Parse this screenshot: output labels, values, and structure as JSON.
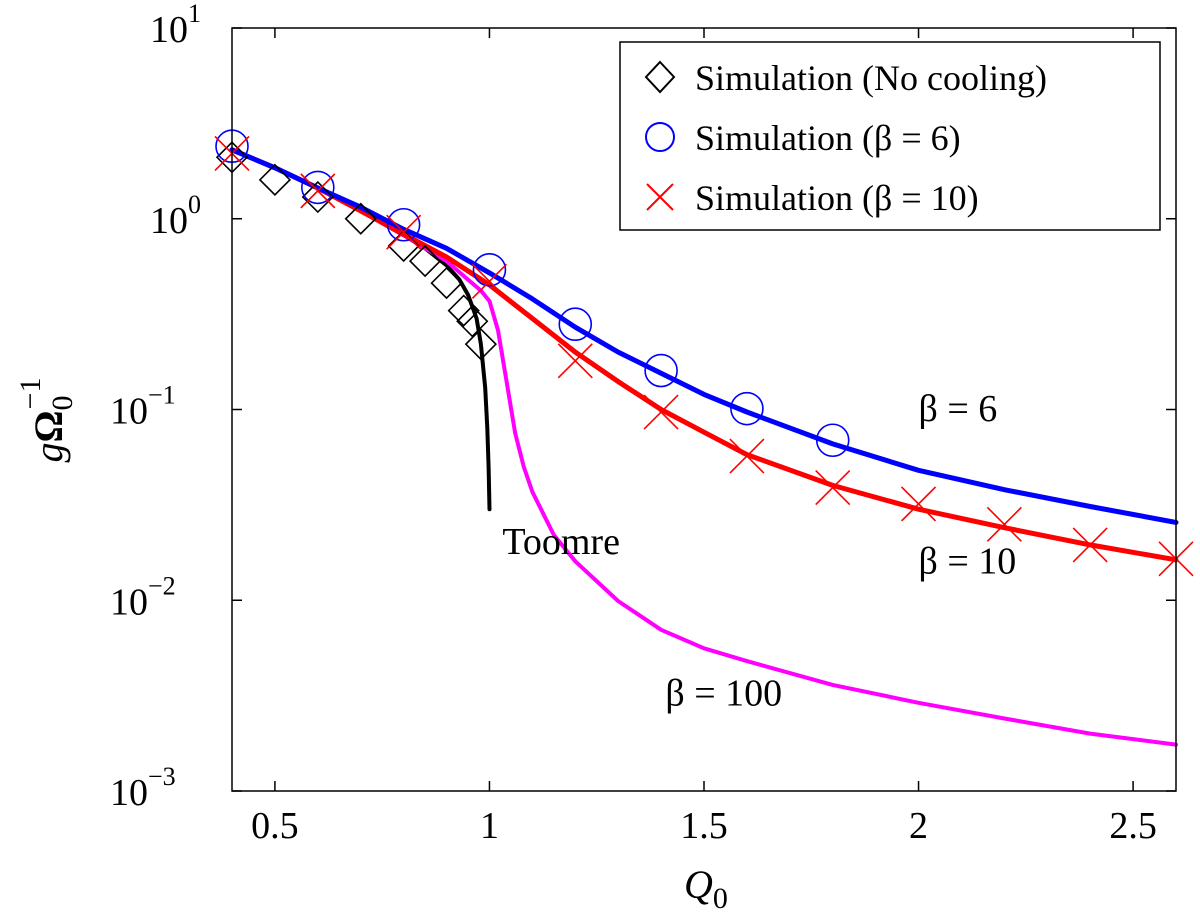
{
  "chart_data": {
    "type": "line",
    "title": "",
    "xlabel": "Q_0",
    "ylabel": "gΩ_0^-1",
    "xlim": [
      0.4,
      2.6
    ],
    "ylim": [
      0.001,
      10
    ],
    "yscale": "log",
    "grid": false,
    "legend_position": "top-right",
    "x_ticks": [
      0.5,
      1,
      1.5,
      2,
      2.5
    ],
    "x_tick_labels": [
      "0.5",
      "1",
      "1.5",
      "2",
      "2.5"
    ],
    "y_ticks": [
      {
        "value": 10,
        "base": "10",
        "exp": "1"
      },
      {
        "value": 1,
        "base": "10",
        "exp": "0"
      },
      {
        "value": 0.1,
        "base": "10",
        "exp": "−1"
      },
      {
        "value": 0.01,
        "base": "10",
        "exp": "−2"
      },
      {
        "value": 0.001,
        "base": "10",
        "exp": "−3"
      }
    ],
    "axis_titles": {
      "x": {
        "main": "Q",
        "sub": "0"
      },
      "y": {
        "g": "g",
        "omega": "Ω",
        "sub": "0",
        "sup": "−1"
      }
    },
    "legend": [
      {
        "series": "sim_nocool",
        "label": "Simulation (No cooling)"
      },
      {
        "series": "sim_beta6",
        "label": "Simulation (β = 6)"
      },
      {
        "series": "sim_beta10",
        "label": "Simulation (β = 10)"
      }
    ],
    "annotations": [
      {
        "text": "Toomre",
        "x": 1.03,
        "y": 0.0175
      },
      {
        "text": "β = 6",
        "x": 2.0,
        "y": 0.087
      },
      {
        "text": "β = 10",
        "x": 2.0,
        "y": 0.0138
      },
      {
        "text": "β = 100",
        "x": 1.41,
        "y": 0.0028
      }
    ],
    "series": [
      {
        "name": "Toomre",
        "kind": "line",
        "color": "#000000",
        "width": 4,
        "points": [
          [
            0.4,
            2.3
          ],
          [
            0.5,
            1.85
          ],
          [
            0.6,
            1.45
          ],
          [
            0.7,
            1.1
          ],
          [
            0.8,
            0.82
          ],
          [
            0.85,
            0.7
          ],
          [
            0.9,
            0.57
          ],
          [
            0.93,
            0.48
          ],
          [
            0.95,
            0.4
          ],
          [
            0.97,
            0.3
          ],
          [
            0.98,
            0.22
          ],
          [
            0.99,
            0.13
          ],
          [
            0.995,
            0.08
          ],
          [
            0.998,
            0.05
          ],
          [
            1.0,
            0.03
          ]
        ]
      },
      {
        "name": "β = 100",
        "kind": "line",
        "color": "#ff00ff",
        "width": 4,
        "points": [
          [
            0.4,
            2.3
          ],
          [
            0.5,
            1.85
          ],
          [
            0.6,
            1.45
          ],
          [
            0.7,
            1.1
          ],
          [
            0.8,
            0.82
          ],
          [
            0.9,
            0.6
          ],
          [
            0.95,
            0.48
          ],
          [
            0.98,
            0.42
          ],
          [
            1.0,
            0.37
          ],
          [
            1.02,
            0.26
          ],
          [
            1.04,
            0.14
          ],
          [
            1.06,
            0.075
          ],
          [
            1.08,
            0.05
          ],
          [
            1.1,
            0.037
          ],
          [
            1.15,
            0.022
          ],
          [
            1.2,
            0.016
          ],
          [
            1.3,
            0.0099
          ],
          [
            1.4,
            0.007
          ],
          [
            1.5,
            0.0056
          ],
          [
            1.6,
            0.0048
          ],
          [
            1.8,
            0.0036
          ],
          [
            2.0,
            0.0029
          ],
          [
            2.2,
            0.0024
          ],
          [
            2.4,
            0.002
          ],
          [
            2.6,
            0.00175
          ]
        ]
      },
      {
        "name": "β = 10",
        "kind": "line",
        "color": "#ff0000",
        "width": 5,
        "points": [
          [
            0.4,
            2.3
          ],
          [
            0.5,
            1.85
          ],
          [
            0.6,
            1.45
          ],
          [
            0.7,
            1.1
          ],
          [
            0.8,
            0.83
          ],
          [
            0.9,
            0.63
          ],
          [
            1.0,
            0.45
          ],
          [
            1.1,
            0.3
          ],
          [
            1.2,
            0.2
          ],
          [
            1.3,
            0.14
          ],
          [
            1.4,
            0.1
          ],
          [
            1.5,
            0.076
          ],
          [
            1.6,
            0.058
          ],
          [
            1.8,
            0.04
          ],
          [
            2.0,
            0.03
          ],
          [
            2.2,
            0.024
          ],
          [
            2.4,
            0.0195
          ],
          [
            2.6,
            0.0163
          ]
        ]
      },
      {
        "name": "β = 6",
        "kind": "line",
        "color": "#0000ff",
        "width": 5,
        "points": [
          [
            0.4,
            2.3
          ],
          [
            0.5,
            1.85
          ],
          [
            0.6,
            1.45
          ],
          [
            0.7,
            1.15
          ],
          [
            0.8,
            0.88
          ],
          [
            0.9,
            0.7
          ],
          [
            1.0,
            0.52
          ],
          [
            1.1,
            0.38
          ],
          [
            1.2,
            0.27
          ],
          [
            1.3,
            0.2
          ],
          [
            1.4,
            0.155
          ],
          [
            1.5,
            0.12
          ],
          [
            1.6,
            0.097
          ],
          [
            1.8,
            0.066
          ],
          [
            2.0,
            0.048
          ],
          [
            2.2,
            0.038
          ],
          [
            2.4,
            0.031
          ],
          [
            2.6,
            0.0256
          ]
        ]
      },
      {
        "name": "sim_nocool",
        "kind": "marker",
        "marker": "diamond",
        "color": "#000000",
        "points": [
          [
            0.4,
            2.1
          ],
          [
            0.5,
            1.6
          ],
          [
            0.6,
            1.3
          ],
          [
            0.7,
            1.0
          ],
          [
            0.8,
            0.72
          ],
          [
            0.85,
            0.6
          ],
          [
            0.9,
            0.46
          ],
          [
            0.94,
            0.33
          ],
          [
            0.96,
            0.29
          ],
          [
            0.98,
            0.22
          ]
        ]
      },
      {
        "name": "sim_beta6",
        "kind": "marker",
        "marker": "circle",
        "color": "#0000ff",
        "points": [
          [
            0.4,
            2.4
          ],
          [
            0.6,
            1.46
          ],
          [
            0.8,
            0.93
          ],
          [
            1.0,
            0.54
          ],
          [
            1.2,
            0.28
          ],
          [
            1.4,
            0.16
          ],
          [
            1.6,
            0.101
          ],
          [
            1.8,
            0.069
          ]
        ]
      },
      {
        "name": "sim_beta10",
        "kind": "marker",
        "marker": "cross",
        "color": "#ff0000",
        "points": [
          [
            0.4,
            2.2
          ],
          [
            0.6,
            1.4
          ],
          [
            0.8,
            0.85
          ],
          [
            1.0,
            0.47
          ],
          [
            1.2,
            0.18
          ],
          [
            1.4,
            0.097
          ],
          [
            1.6,
            0.057
          ],
          [
            1.8,
            0.039
          ],
          [
            2.0,
            0.032
          ],
          [
            2.2,
            0.025
          ],
          [
            2.4,
            0.0195
          ],
          [
            2.6,
            0.0165
          ]
        ]
      }
    ]
  }
}
